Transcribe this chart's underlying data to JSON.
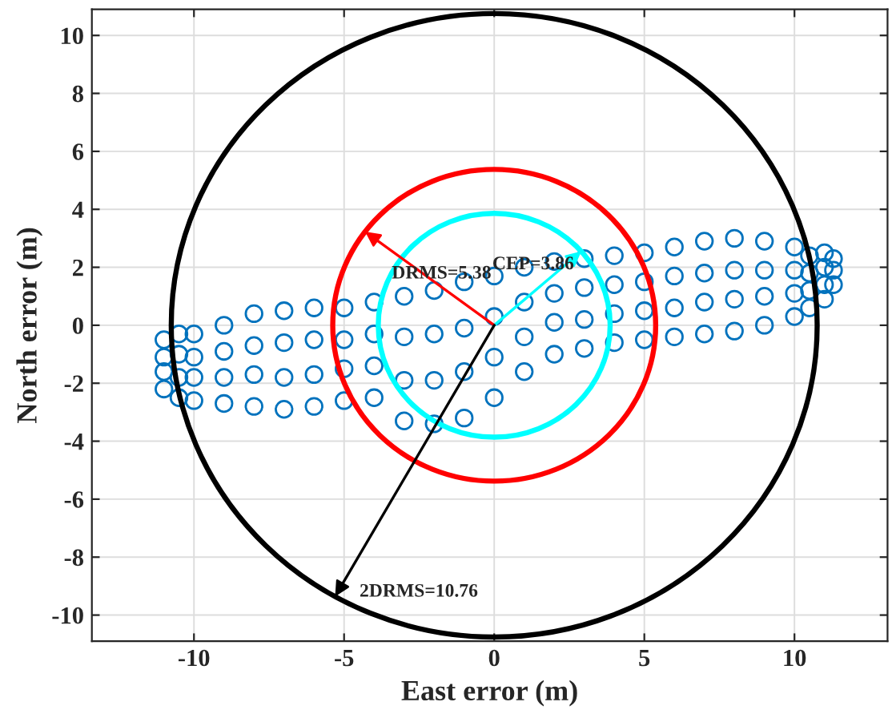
{
  "chart_data": {
    "type": "scatter",
    "xlabel": "East error (m)",
    "ylabel": "North error (m)",
    "xlim": [
      -13.4,
      13.1
    ],
    "ylim": [
      -10.9,
      10.9
    ],
    "xticks": [
      -10,
      -5,
      0,
      5,
      10
    ],
    "yticks": [
      -10,
      -8,
      -6,
      -4,
      -2,
      0,
      2,
      4,
      6,
      8,
      10
    ],
    "grid": true,
    "series": [
      {
        "color": "#0072bd",
        "marker": "circle",
        "x": [
          -11,
          -11,
          -11,
          -11,
          -10.5,
          -10.5,
          -10.5,
          -10.5,
          -10,
          -10,
          -10,
          -10,
          -9,
          -9,
          -9,
          -9,
          -8,
          -8,
          -8,
          -8,
          -7,
          -7,
          -7,
          -7,
          -6,
          -6,
          -6,
          -6,
          -5,
          -5,
          -5,
          -5,
          -4,
          -4,
          -4,
          -4,
          -3,
          -3,
          -3,
          -3,
          -2,
          -2,
          -2,
          -2,
          -1,
          -1,
          -1,
          -1,
          0,
          0,
          0,
          0,
          1,
          1,
          1,
          1,
          2,
          2,
          2,
          2,
          3,
          3,
          3,
          3,
          4,
          4,
          4,
          4,
          5,
          5,
          5,
          5,
          6,
          6,
          6,
          6,
          7,
          7,
          7,
          7,
          8,
          8,
          8,
          8,
          9,
          9,
          9,
          9,
          10,
          10,
          10,
          10,
          10.5,
          10.5,
          10.5,
          10.5,
          11,
          11,
          11,
          11,
          11.3,
          11.3,
          11.3
        ],
        "values": [
          -2.2,
          -1.6,
          -1.1,
          -0.5,
          -2.5,
          -1.8,
          -1.0,
          -0.3,
          -2.6,
          -1.8,
          -1.1,
          -0.3,
          -2.7,
          -1.8,
          -0.9,
          0,
          -2.8,
          -1.7,
          -0.7,
          0.4,
          -2.9,
          -1.8,
          -0.6,
          0.5,
          -2.8,
          -1.7,
          -0.5,
          0.6,
          -2.6,
          -1.5,
          -0.5,
          0.6,
          -2.5,
          -1.4,
          -0.3,
          0.8,
          -3.3,
          -1.9,
          -0.4,
          1.0,
          -3.4,
          -1.9,
          -0.3,
          1.2,
          -3.2,
          -1.6,
          -0.1,
          1.5,
          -2.5,
          -1.1,
          0.3,
          1.7,
          -1.6,
          -0.4,
          0.8,
          2.0,
          -1.0,
          0.1,
          1.1,
          2.2,
          -0.8,
          0.2,
          1.3,
          2.3,
          -0.6,
          0.4,
          1.4,
          2.4,
          -0.5,
          0.5,
          1.5,
          2.5,
          -0.4,
          0.6,
          1.7,
          2.7,
          -0.3,
          0.8,
          1.8,
          2.9,
          -0.2,
          0.9,
          1.9,
          3.0,
          0,
          1.0,
          1.9,
          2.9,
          0.3,
          1.1,
          1.9,
          2.7,
          0.6,
          1.2,
          1.8,
          2.4,
          0.9,
          1.4,
          2.0,
          2.5,
          1.4,
          1.9,
          2.3
        ]
      },
      {
        "type": "line",
        "color": "#00ffff",
        "x": [
          0,
          2.9
        ],
        "values": [
          0,
          2.55
        ]
      },
      {
        "type": "line",
        "color": "#ff0000",
        "x": [
          0,
          -4.3
        ],
        "values": [
          0,
          3.23
        ]
      },
      {
        "type": "line",
        "color": "#000000",
        "x": [
          0,
          -5.3
        ],
        "values": [
          0,
          -9.36
        ]
      }
    ],
    "annotations": [
      {
        "text": "CEP=3.86",
        "x": 2.9,
        "y": 2.55
      },
      {
        "text": "DRMS=5.38",
        "x": -4.3,
        "y": 3.23
      },
      {
        "text": "2DRMS=10.76",
        "x": -5.3,
        "y": -9.36
      }
    ]
  }
}
